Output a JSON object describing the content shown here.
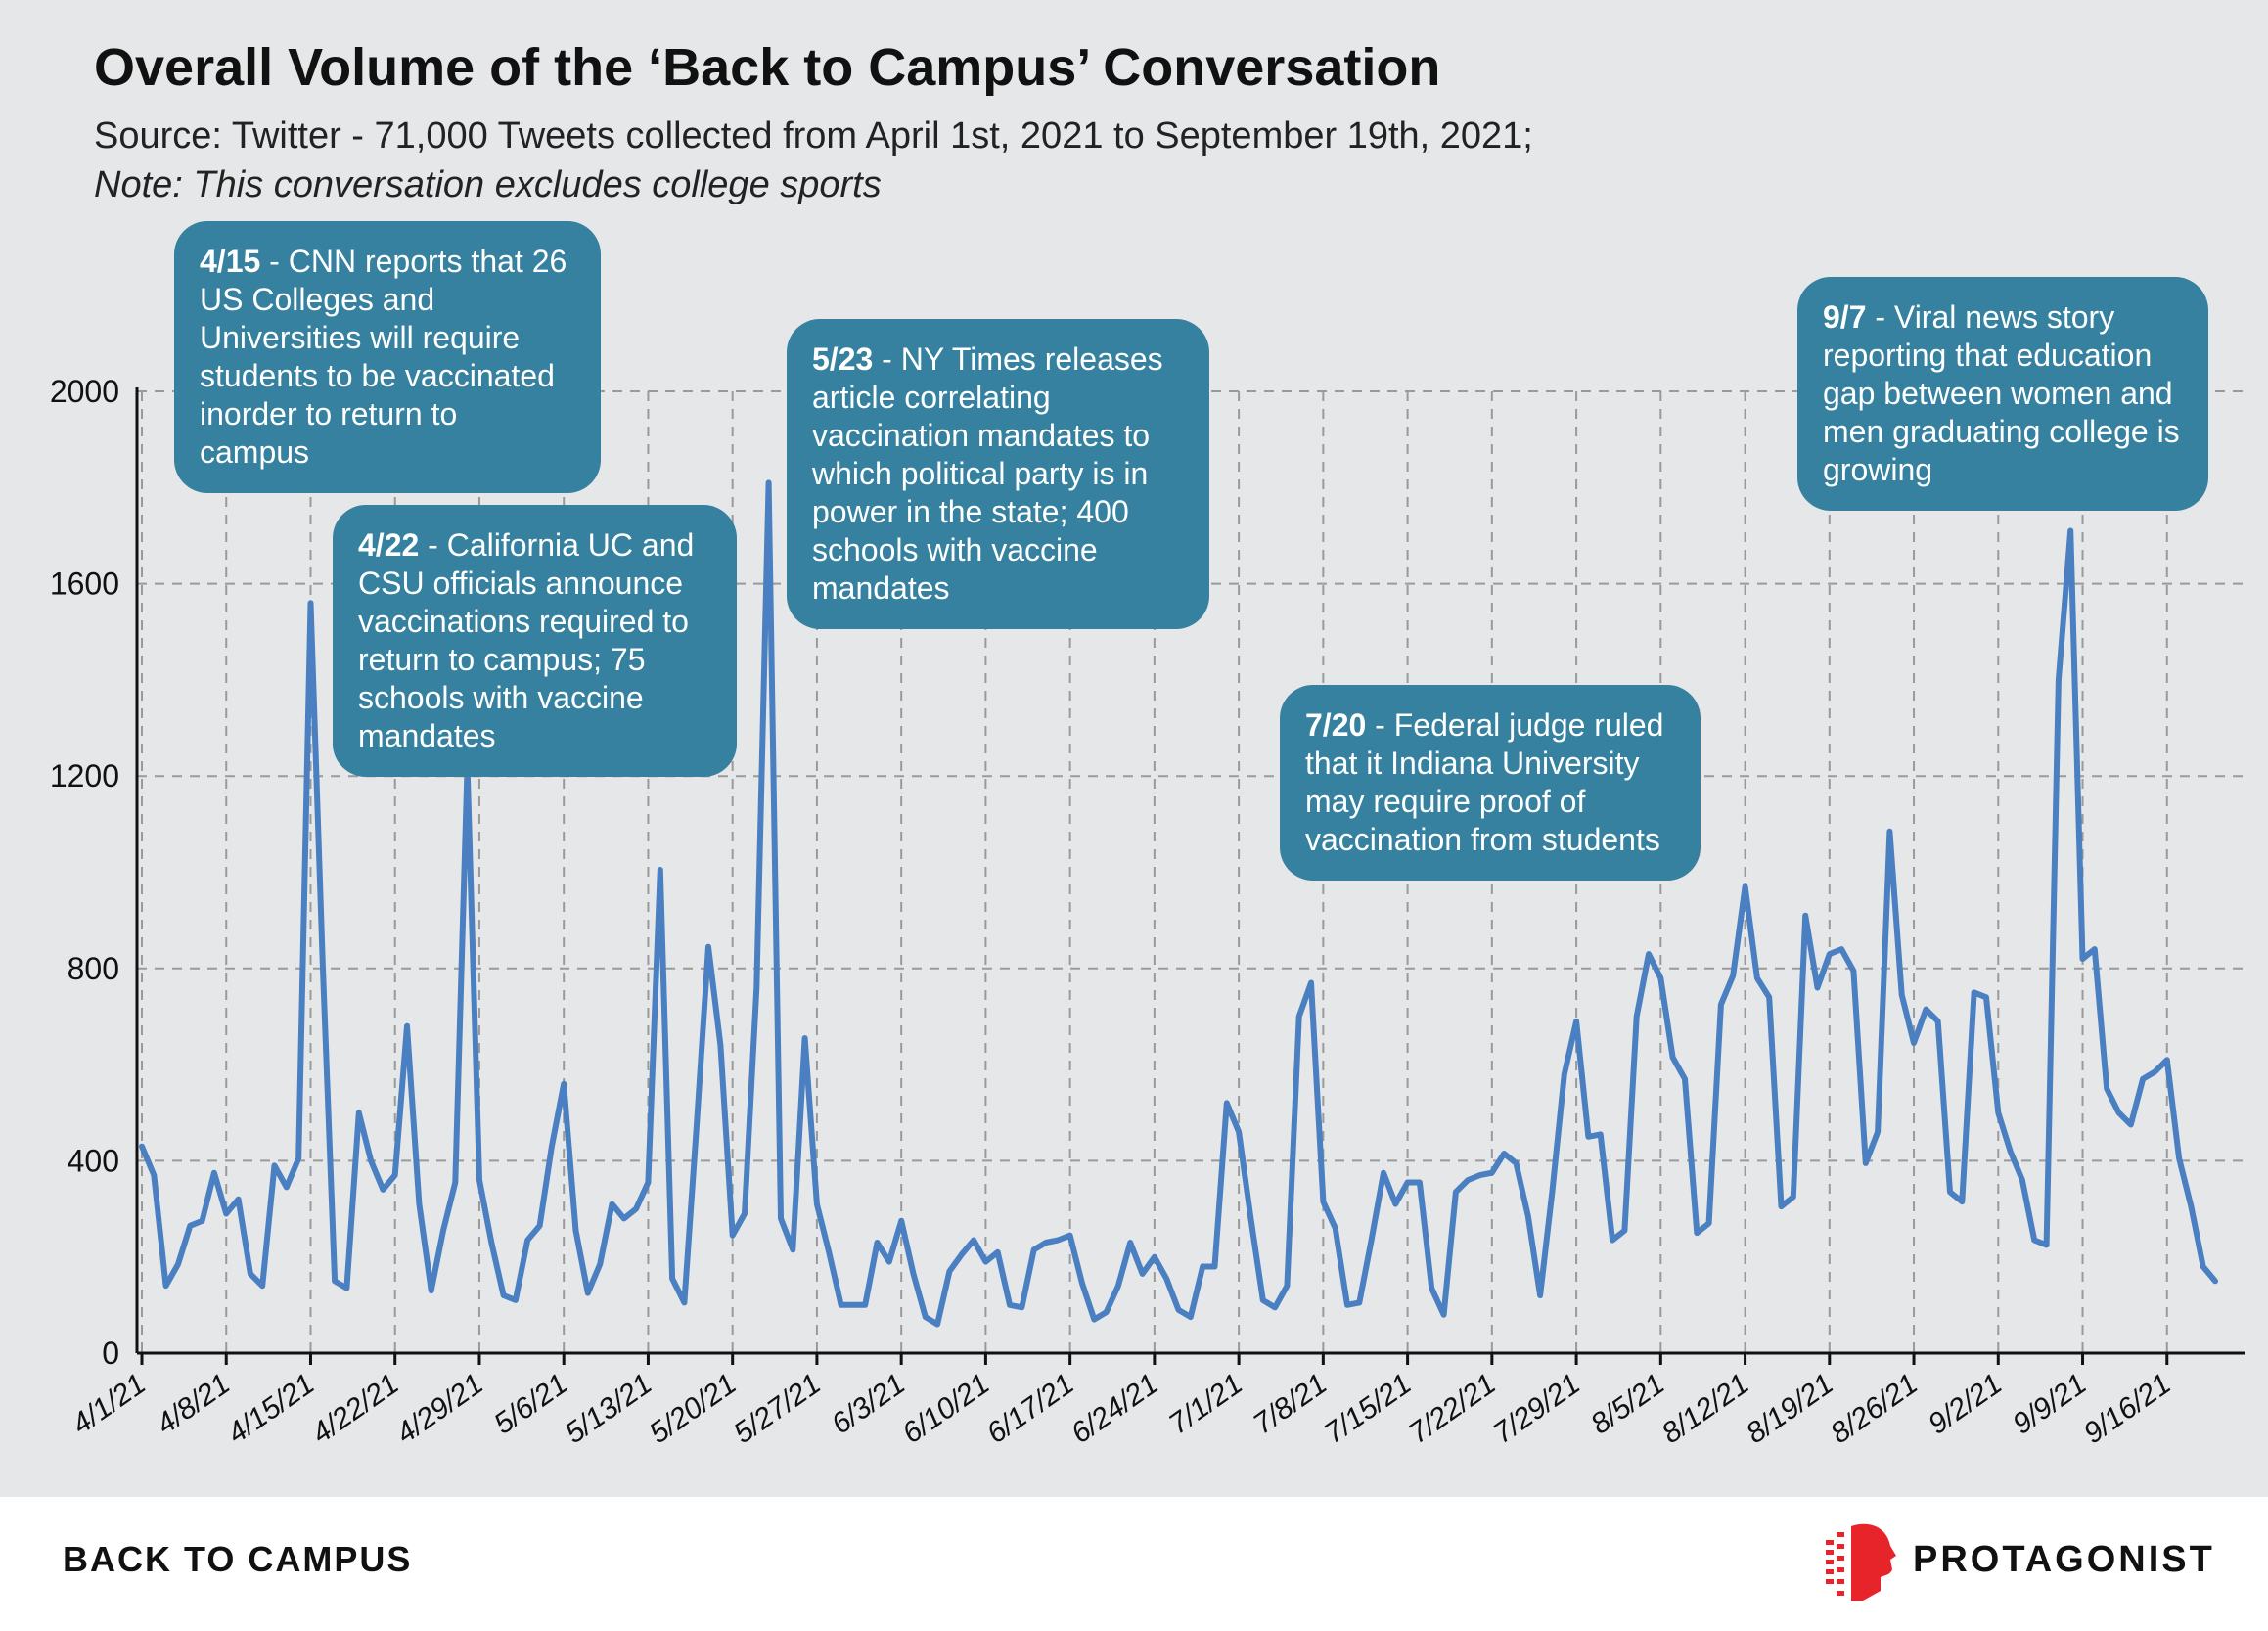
{
  "title": "Overall Volume of the ‘Back to Campus’ Conversation",
  "subtitle": "Source: Twitter - 71,000 Tweets collected from April 1st, 2021 to September 19th, 2021;",
  "note": "Note: This conversation excludes college sports",
  "footer": {
    "left_label": "BACK TO CAMPUS",
    "brand": "PROTAGONIST"
  },
  "colors": {
    "line": "#4a7fc1",
    "callout": "#35819f",
    "background": "#e6e7e8",
    "logo": "#e8242b"
  },
  "annotations": [
    {
      "date": "4/15",
      "text": " - CNN reports that 26 US Colleges and Universities will require students to be vaccinated inorder to return to campus"
    },
    {
      "date": "4/22",
      "text": " - California UC and CSU officials announce vaccinations required to return to campus; 75 schools with vaccine mandates"
    },
    {
      "date": "5/23",
      "text": " - NY Times releases article correlating vaccination mandates to which political party is in power in the state; 400 schools with vaccine mandates"
    },
    {
      "date": "7/20",
      "text": " - Federal judge ruled that it Indiana University may require proof of vaccination from students"
    },
    {
      "date": "9/7",
      "text": " - Viral news story reporting that education gap between women and men graduating college is growing"
    }
  ],
  "chart_data": {
    "type": "line",
    "title": "Overall Volume of the ‘Back to Campus’ Conversation",
    "xlabel": "",
    "ylabel": "",
    "ylim": [
      0,
      2000
    ],
    "yticks": [
      0,
      400,
      800,
      1200,
      1600,
      2000
    ],
    "xtick_labels": [
      "4/1/21",
      "4/8/21",
      "4/15/21",
      "4/22/21",
      "4/29/21",
      "5/6/21",
      "5/13/21",
      "5/20/21",
      "5/27/21",
      "6/3/21",
      "6/10/21",
      "6/17/21",
      "6/24/21",
      "7/1/21",
      "7/8/21",
      "7/15/21",
      "7/22/21",
      "7/29/21",
      "8/5/21",
      "8/12/21",
      "8/19/21",
      "8/26/21",
      "9/2/21",
      "9/9/21",
      "9/16/21"
    ],
    "grid": true,
    "series": [
      {
        "start_date": "4/1/21",
        "values": [
          430,
          370,
          140,
          185,
          265,
          275,
          375,
          290,
          320,
          165,
          140,
          390,
          345,
          405,
          1560,
          810,
          150,
          135,
          500,
          400,
          340,
          370,
          680,
          310,
          130,
          255,
          355,
          1220,
          360,
          230,
          120,
          110,
          235,
          265,
          430,
          560,
          255,
          125,
          185,
          310,
          280,
          300,
          355,
          1005,
          155,
          105,
          465,
          845,
          640,
          245,
          290,
          760,
          1810,
          280,
          215,
          655,
          310,
          210,
          100,
          100,
          100,
          230,
          190,
          275,
          165,
          75,
          60,
          170,
          205,
          235,
          190,
          210,
          100,
          95,
          215,
          230,
          235,
          245,
          145,
          70,
          85,
          140,
          230,
          165,
          200,
          155,
          90,
          75,
          180,
          180,
          520,
          460,
          280,
          110,
          95,
          140,
          700,
          770,
          315,
          260,
          100,
          105,
          235,
          375,
          310,
          355,
          355,
          135,
          80,
          335,
          360,
          370,
          375,
          415,
          395,
          285,
          120,
          335,
          580,
          690,
          450,
          455,
          235,
          255,
          700,
          830,
          780,
          615,
          570,
          250,
          270,
          725,
          785,
          970,
          780,
          740,
          305,
          325,
          910,
          760,
          830,
          840,
          795,
          395,
          460,
          1085,
          745,
          645,
          715,
          690,
          335,
          315,
          750,
          740,
          500,
          420,
          360,
          235,
          225,
          1400,
          1710,
          820,
          840,
          550,
          500,
          475,
          570,
          585,
          610,
          405,
          305,
          180,
          150
        ]
      }
    ]
  }
}
